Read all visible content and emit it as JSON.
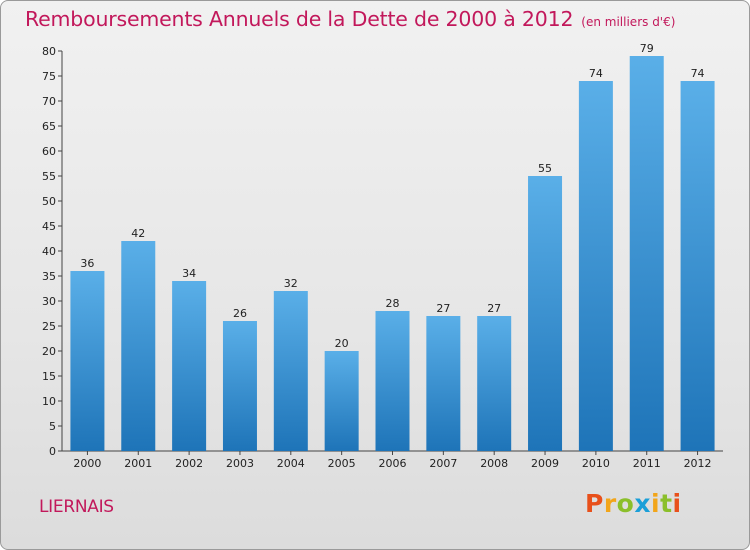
{
  "header": {
    "title": "Remboursements Annuels de la Dette de 2000 à 2012",
    "subtitle": "(en milliers d'€)"
  },
  "footer": {
    "commune": "LIERNAIS",
    "logo_text": "Proxiti"
  },
  "colors": {
    "title": "#c2185b",
    "bar_light": "#5aafe8",
    "bar_dark": "#1e74b8"
  },
  "chart_data": {
    "type": "bar",
    "title": "Remboursements Annuels de la Dette de 2000 à 2012",
    "subtitle": "(en milliers d'€)",
    "categories": [
      "2000",
      "2001",
      "2002",
      "2003",
      "2004",
      "2005",
      "2006",
      "2007",
      "2008",
      "2009",
      "2010",
      "2011",
      "2012"
    ],
    "values": [
      36,
      42,
      34,
      26,
      32,
      20,
      28,
      27,
      27,
      55,
      74,
      79,
      74
    ],
    "ylim": [
      0,
      80
    ],
    "yticks": [
      0,
      5,
      10,
      15,
      20,
      25,
      30,
      35,
      40,
      45,
      50,
      55,
      60,
      65,
      70,
      75,
      80
    ],
    "grid": false,
    "xlabel": "",
    "ylabel": ""
  }
}
